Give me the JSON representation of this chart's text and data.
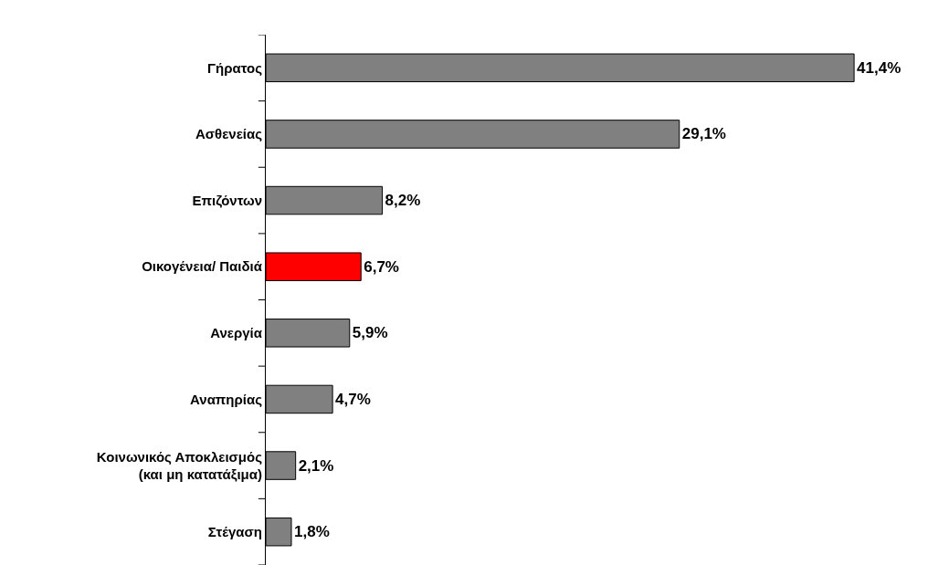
{
  "chart_data": {
    "type": "bar",
    "orientation": "horizontal",
    "categories": [
      "Γήρατος",
      "Ασθενείας",
      "Επιζόντων",
      "Οικογένεια/ Παιδιά",
      "Ανεργία",
      "Αναπηρίας",
      "Κοινωνικός Αποκλεισμός\n(και μη κατατάξιμα)",
      "Στέγαση"
    ],
    "values": [
      41.4,
      29.1,
      8.2,
      6.7,
      5.9,
      4.7,
      2.1,
      1.8
    ],
    "value_labels": [
      "41,4%",
      "29,1%",
      "8,2%",
      "6,7%",
      "5,9%",
      "4,7%",
      "2,1%",
      "1,8%"
    ],
    "colors": [
      "#808080",
      "#808080",
      "#808080",
      "#ff0000",
      "#808080",
      "#808080",
      "#808080",
      "#808080"
    ]
  }
}
